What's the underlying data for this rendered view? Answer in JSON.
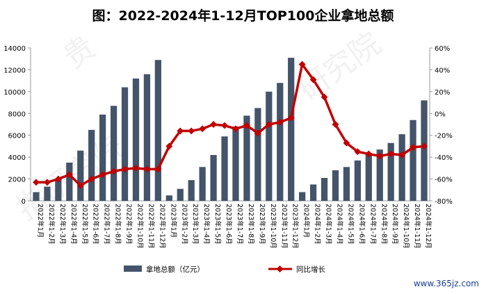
{
  "title": "图：2022-2024年1-12月TOP100企业拿地总额",
  "watermark_url": "www.365jz.com",
  "colors": {
    "bar": "#44546A",
    "line": "#C00000",
    "axis": "#999999"
  },
  "chart_data": {
    "type": "bar+line",
    "categories": [
      "2022年1月",
      "2022年1-2月",
      "2022年1-3月",
      "2022年1-4月",
      "2022年1-5月",
      "2022年1-6月",
      "2022年1-7月",
      "2022年1-8月",
      "2022年1-9月",
      "2022年1-10月",
      "2022年1-11月",
      "2022年1-12月",
      "2023年1月",
      "2023年1-2月",
      "2023年1-3月",
      "2023年1-4月",
      "2023年1-5月",
      "2023年1-6月",
      "2023年1-7月",
      "2023年1-8月",
      "2023年1-9月",
      "2023年1-10月",
      "2023年1-11月",
      "2023年1-12月",
      "2024年1月",
      "2024年1-2月",
      "2024年1-3月",
      "2024年1-4月",
      "2024年1-5月",
      "2024年1-6月",
      "2024年1-7月",
      "2024年1-8月",
      "2024年1-9月",
      "2024年1-10月",
      "2024年1-11月",
      "2024年1-12月"
    ],
    "series": [
      {
        "name": "拿地总额（亿元）",
        "kind": "bar",
        "axis": "left",
        "values": [
          800,
          1300,
          2000,
          3500,
          4600,
          6500,
          7900,
          8700,
          10400,
          11200,
          11600,
          12900,
          500,
          1100,
          1900,
          3100,
          4200,
          5900,
          6800,
          7800,
          8500,
          10000,
          10800,
          13100,
          800,
          1500,
          2100,
          2800,
          3100,
          3700,
          4400,
          4700,
          5300,
          6100,
          7400,
          9200
        ]
      },
      {
        "name": "同比增长",
        "kind": "line",
        "axis": "right",
        "values": [
          -63,
          -63,
          -60,
          -56,
          -66,
          -60,
          -56,
          -53,
          -51,
          -50,
          -51,
          -51,
          -30,
          -16,
          -16,
          -14,
          -10,
          -11,
          -14,
          -11,
          -18,
          -10,
          -8,
          -4,
          45,
          31,
          15,
          -10,
          -27,
          -35,
          -37,
          -39,
          -37,
          -38,
          -31,
          -30
        ]
      }
    ],
    "y_left": {
      "min": 0,
      "max": 14000,
      "ticks": [
        "0",
        "2000",
        "4000",
        "6000",
        "8000",
        "10000",
        "12000",
        "14000"
      ]
    },
    "y_right": {
      "min": -80,
      "max": 60,
      "ticks": [
        "-80%",
        "-60%",
        "-40%",
        "-20%",
        "0%",
        "20%",
        "40%",
        "60%"
      ]
    },
    "grid": false,
    "legend": {
      "position": "bottom",
      "items": [
        "拿地总额（亿元）",
        "同比增长"
      ]
    }
  }
}
